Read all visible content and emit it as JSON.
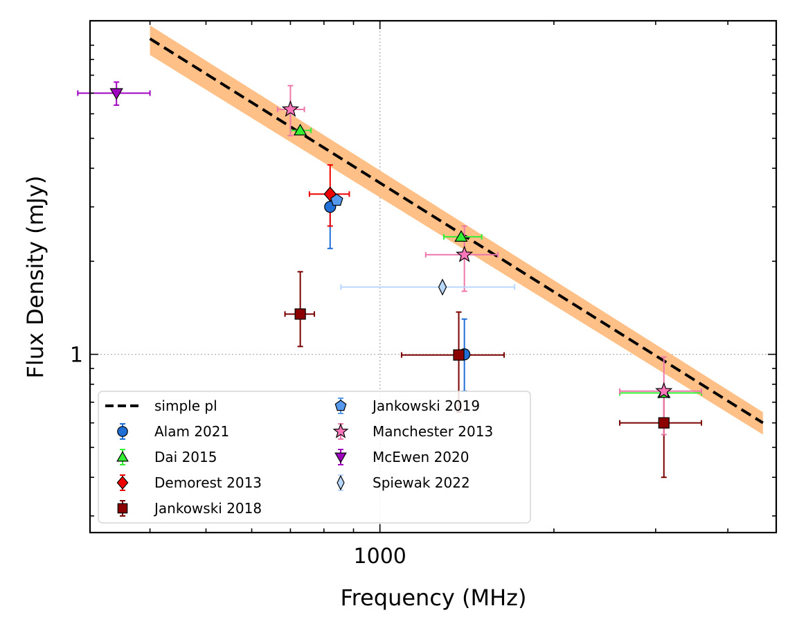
{
  "chart_data": {
    "type": "scatter",
    "xlabel": "Frequency (MHz)",
    "ylabel": "Flux Density (mJy)",
    "xscale": "log",
    "yscale": "log",
    "xlim": [
      315,
      4850
    ],
    "ylim": [
      0.265,
      12.0
    ],
    "x_ticklabels": [
      {
        "value": 1000,
        "label": "1000"
      }
    ],
    "y_ticklabels": [
      {
        "value": 1,
        "label": "1"
      }
    ],
    "grid": "dotted at 1000 MHz and 1 mJy",
    "legend": {
      "placement": "lower-left",
      "columns": 2
    },
    "fit": {
      "name": "simple pl",
      "style": "dashed black",
      "x_range": [
        400,
        4600
      ],
      "y_at_x_start": 10.5,
      "y_at_x_end": 0.6,
      "band_color": "#ffc087",
      "band_upper_at_end": 0.65,
      "band_lower_at_end": 0.55,
      "band_upper_at_start": 11.6,
      "band_lower_at_start": 9.3
    },
    "series": [
      {
        "name": "Alam 2021",
        "marker": "circle",
        "color": "#1f6fd6",
        "ecolor": "#1f6fd6",
        "points": [
          {
            "x": 820,
            "y": 3.0,
            "yerr": [
              3.05,
              2.2
            ]
          },
          {
            "x": 1400,
            "y": 1.0,
            "yerr": [
              1.3,
              0.76
            ]
          }
        ]
      },
      {
        "name": "Dai 2015",
        "marker": "triangle-up",
        "color": "#33ee33",
        "ecolor": "#33ee33",
        "points": [
          {
            "x": 728,
            "y": 5.3,
            "xerr": [
              700,
              760
            ]
          },
          {
            "x": 1382,
            "y": 2.4,
            "xerr": [
              1290,
              1500
            ]
          },
          {
            "x": 3100,
            "y": 0.75,
            "xerr": [
              2600,
              3600
            ]
          }
        ]
      },
      {
        "name": "Demorest 2013",
        "marker": "diamond",
        "color": "#ee0000",
        "ecolor": "#ee0000",
        "points": [
          {
            "x": 820,
            "y": 3.3,
            "xerr": [
              755,
              885
            ],
            "yerr": [
              2.6,
              4.1
            ]
          }
        ]
      },
      {
        "name": "Jankowski 2018",
        "marker": "square",
        "color": "#8b0000",
        "ecolor": "#7a0000",
        "points": [
          {
            "x": 728,
            "y": 1.35,
            "xerr": [
              685,
              770
            ],
            "yerr": [
              1.06,
              1.85
            ]
          },
          {
            "x": 1369,
            "y": 0.995,
            "xerr": [
              1090,
              1640
            ],
            "yerr": [
              0.65,
              1.37
            ]
          },
          {
            "x": 3100,
            "y": 0.6,
            "xerr": [
              2600,
              3600
            ],
            "yerr": [
              0.4,
              0.73
            ]
          }
        ]
      },
      {
        "name": "Jankowski 2019",
        "marker": "pentagon",
        "color": "#5599ee",
        "ecolor": "#5599ee",
        "points": [
          {
            "x": 842,
            "y": 3.15
          }
        ]
      },
      {
        "name": "Manchester 2013",
        "marker": "star",
        "color": "#ff77bb",
        "ecolor": "#ee77aa",
        "points": [
          {
            "x": 700,
            "y": 6.2,
            "xerr": [
              665,
              740
            ],
            "yerr": [
              5.1,
              7.4
            ]
          },
          {
            "x": 1400,
            "y": 2.1,
            "xerr": [
              1200,
              1600
            ],
            "yerr": [
              1.6,
              2.6
            ]
          },
          {
            "x": 3100,
            "y": 0.76,
            "xerr": [
              2600,
              3600
            ],
            "yerr": [
              0.55,
              0.98
            ]
          }
        ]
      },
      {
        "name": "McEwen 2020",
        "marker": "triangle-down",
        "color": "#a000c0",
        "ecolor": "#a000c0",
        "points": [
          {
            "x": 350,
            "y": 7.0,
            "xerr": [
              300,
              400
            ],
            "yerr": [
              6.4,
              7.6
            ]
          }
        ]
      },
      {
        "name": "Spiewak 2022",
        "marker": "thin-diamond",
        "color": "#b8d7ff",
        "ecolor": "#b8d7ff",
        "points": [
          {
            "x": 1283,
            "y": 1.65,
            "xerr": [
              856,
              1710
            ]
          }
        ]
      }
    ]
  }
}
